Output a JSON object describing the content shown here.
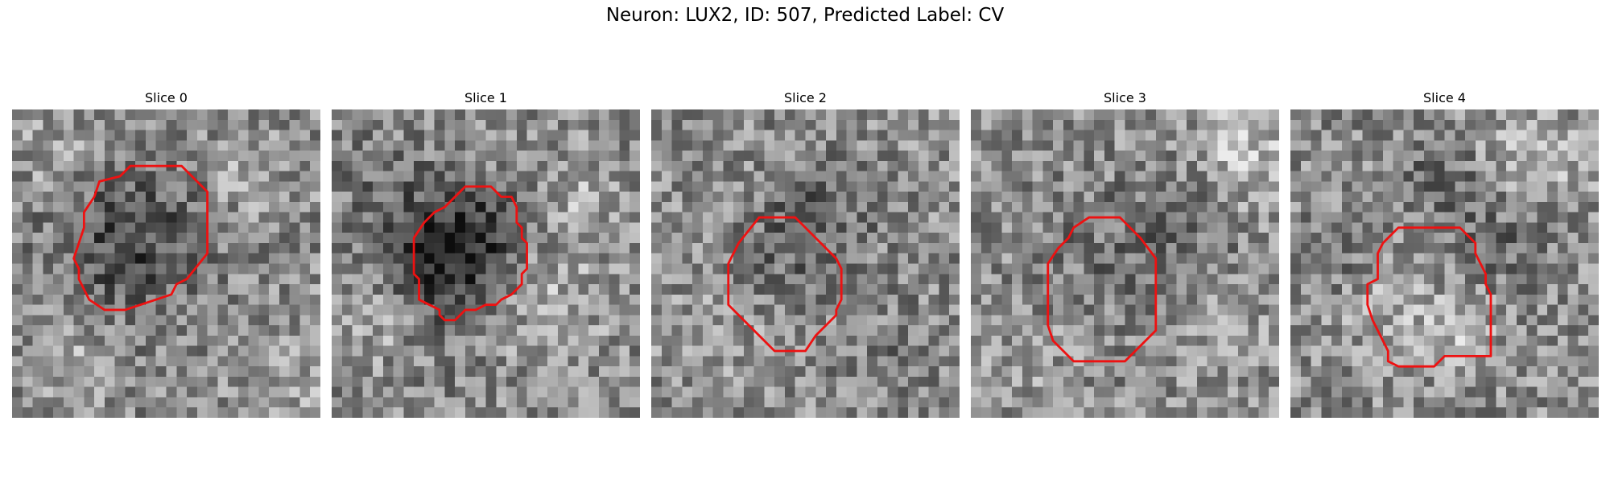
{
  "figure": {
    "title": "Neuron: LUX2, ID: 507, Predicted Label: CV"
  },
  "slices": [
    {
      "label": "Slice 0",
      "seed": 11,
      "blobs": [
        [
          12,
          12,
          6.5,
          -0.15
        ],
        [
          10,
          13,
          9,
          -0.12
        ],
        [
          4,
          4,
          4,
          0.12
        ],
        [
          22,
          6,
          4,
          0.1
        ],
        [
          26,
          26,
          5,
          0.1
        ],
        [
          6,
          24,
          4,
          0.12
        ]
      ],
      "contour": [
        [
          13,
          5.5
        ],
        [
          16.5,
          5.5
        ],
        [
          19,
          8
        ],
        [
          19,
          14
        ],
        [
          17,
          16.5
        ],
        [
          16,
          17
        ],
        [
          15.5,
          18
        ],
        [
          14,
          18.5
        ],
        [
          11,
          19.5
        ],
        [
          9,
          19.5
        ],
        [
          7.5,
          18.5
        ],
        [
          7,
          17.5
        ],
        [
          6.5,
          16.5
        ],
        [
          6.5,
          15.5
        ],
        [
          6,
          14.5
        ],
        [
          6.5,
          13
        ],
        [
          7,
          11.5
        ],
        [
          7,
          10
        ],
        [
          8,
          8.5
        ],
        [
          8.5,
          7
        ],
        [
          10.5,
          6.5
        ],
        [
          11.5,
          5.5
        ]
      ]
    },
    {
      "label": "Slice 1",
      "seed": 23,
      "blobs": [
        [
          12,
          13,
          5.5,
          -0.35
        ],
        [
          10,
          15,
          8,
          -0.15
        ],
        [
          20,
          18,
          6,
          0.15
        ],
        [
          4,
          6,
          4,
          -0.1
        ],
        [
          4,
          20,
          4,
          0.15
        ],
        [
          24,
          8,
          4,
          0.12
        ]
      ],
      "contour": [
        [
          13,
          7.5
        ],
        [
          15.5,
          7.5
        ],
        [
          16.5,
          8.5
        ],
        [
          17.5,
          8.5
        ],
        [
          18,
          9.5
        ],
        [
          18,
          11
        ],
        [
          18.5,
          11.5
        ],
        [
          18.5,
          12.5
        ],
        [
          19,
          13
        ],
        [
          19,
          15.5
        ],
        [
          18.5,
          16
        ],
        [
          18.5,
          17
        ],
        [
          18,
          17.5
        ],
        [
          17.5,
          18
        ],
        [
          16.5,
          18.5
        ],
        [
          16,
          19
        ],
        [
          15,
          19
        ],
        [
          14,
          19.5
        ],
        [
          13,
          19.5
        ],
        [
          12.5,
          20
        ],
        [
          12,
          20.5
        ],
        [
          11,
          20.5
        ],
        [
          10.5,
          20
        ],
        [
          10.5,
          19.5
        ],
        [
          9.5,
          19
        ],
        [
          8.5,
          18.5
        ],
        [
          8.5,
          16.5
        ],
        [
          8,
          16
        ],
        [
          8,
          12.5
        ],
        [
          9,
          11
        ],
        [
          10,
          10
        ],
        [
          11,
          9.5
        ],
        [
          12,
          8.5
        ]
      ]
    },
    {
      "label": "Slice 2",
      "seed": 37,
      "blobs": [
        [
          13,
          13,
          6,
          -0.1
        ],
        [
          16,
          10,
          5,
          -0.12
        ],
        [
          6,
          22,
          5,
          0.08
        ],
        [
          23,
          24,
          5,
          -0.08
        ]
      ],
      "contour": [
        [
          10.5,
          10.5
        ],
        [
          14,
          10.5
        ],
        [
          17,
          13.5
        ],
        [
          18,
          14.5
        ],
        [
          18.5,
          15.5
        ],
        [
          18.5,
          18.5
        ],
        [
          18,
          19.5
        ],
        [
          18,
          20
        ],
        [
          17,
          21
        ],
        [
          16,
          22
        ],
        [
          15,
          23.5
        ],
        [
          12,
          23.5
        ],
        [
          11,
          22.5
        ],
        [
          10,
          21.5
        ],
        [
          8.5,
          20
        ],
        [
          7.5,
          19
        ],
        [
          7.5,
          15
        ],
        [
          8.5,
          13
        ]
      ]
    },
    {
      "label": "Slice 3",
      "seed": 51,
      "blobs": [
        [
          13,
          14,
          6,
          -0.1
        ],
        [
          20,
          10,
          5,
          -0.15
        ],
        [
          26,
          4,
          5,
          0.2
        ],
        [
          5,
          24,
          5,
          0.05
        ],
        [
          24,
          22,
          4,
          0.1
        ]
      ],
      "contour": [
        [
          11.5,
          10.5
        ],
        [
          14.5,
          10.5
        ],
        [
          16.5,
          12.5
        ],
        [
          18,
          14.5
        ],
        [
          18,
          21.5
        ],
        [
          17,
          22.5
        ],
        [
          16,
          23.5
        ],
        [
          15,
          24.5
        ],
        [
          10,
          24.5
        ],
        [
          9,
          23.5
        ],
        [
          8,
          22.5
        ],
        [
          7.5,
          21
        ],
        [
          7.5,
          15
        ],
        [
          8.5,
          13.5
        ],
        [
          9.5,
          12.5
        ],
        [
          10,
          11.5
        ]
      ]
    },
    {
      "label": "Slice 4",
      "seed": 67,
      "blobs": [
        [
          14,
          6,
          4,
          -0.15
        ],
        [
          23,
          4,
          5,
          0.18
        ],
        [
          9,
          18,
          5,
          0.12
        ],
        [
          16,
          21,
          4,
          0.15
        ],
        [
          20,
          12,
          5,
          -0.12
        ],
        [
          4,
          14,
          4,
          -0.1
        ]
      ],
      "contour": [
        [
          10.5,
          11.5
        ],
        [
          16.5,
          11.5
        ],
        [
          17,
          12
        ],
        [
          17.5,
          12.5
        ],
        [
          18,
          13
        ],
        [
          18,
          14
        ],
        [
          18.5,
          15
        ],
        [
          19,
          16
        ],
        [
          19,
          17
        ],
        [
          19.5,
          18
        ],
        [
          19.5,
          20
        ],
        [
          19.5,
          24
        ],
        [
          15,
          24
        ],
        [
          14.5,
          24.5
        ],
        [
          14,
          25
        ],
        [
          10.5,
          25
        ],
        [
          9.5,
          24.5
        ],
        [
          9.5,
          23.5
        ],
        [
          9,
          22.5
        ],
        [
          8.5,
          21.5
        ],
        [
          8,
          20.5
        ],
        [
          7.5,
          19
        ],
        [
          7.5,
          17
        ],
        [
          8.5,
          16.5
        ],
        [
          8.5,
          14
        ],
        [
          9,
          13
        ],
        [
          9.5,
          12.5
        ]
      ]
    }
  ],
  "style": {
    "contour_color": "#ee1111"
  }
}
